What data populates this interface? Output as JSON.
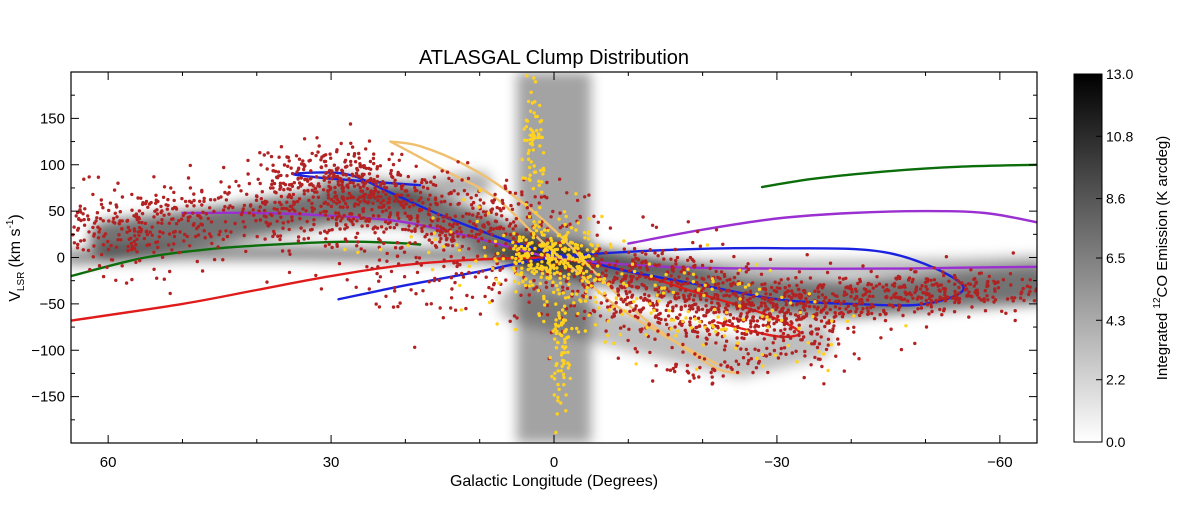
{
  "chart_data": {
    "type": "scatter",
    "title": "ATLASGAL Clump Distribution",
    "xlabel": "Galactic Longitude (Degrees)",
    "ylabel_main": "V",
    "ylabel_sub": "LSR",
    "ylabel_units": "(km s",
    "ylabel_units_sup": "-1",
    "ylabel_units_close": ")",
    "xlim": [
      65,
      -65
    ],
    "ylim": [
      -200,
      200
    ],
    "x_ticks": [
      60,
      30,
      0,
      -30,
      -60
    ],
    "x_tick_labels": [
      "60",
      "30",
      "0",
      "−30",
      "−60"
    ],
    "y_ticks": [
      150,
      100,
      50,
      0,
      -50,
      -100,
      -150
    ],
    "y_tick_labels": [
      "150",
      "100",
      "50",
      "0",
      "−50",
      "−100",
      "−150"
    ],
    "colorbar": {
      "label_prefix": "Integrated ",
      "label_sup": "12",
      "label_suffix": "CO Emission (K arcdeg)",
      "range": [
        0.0,
        13.0
      ],
      "tick_labels": [
        "13.0",
        "10.8",
        "8.6",
        "6.5",
        "4.3",
        "2.2",
        "0.0"
      ],
      "tick_values": [
        13.0,
        10.8,
        8.6,
        6.5,
        4.3,
        2.2,
        0.0
      ]
    },
    "co_emission": {
      "description_color": "#000000",
      "ridges": [
        {
          "points": [
            [
              60,
              20
            ],
            [
              45,
              35
            ],
            [
              30,
              55
            ],
            [
              20,
              55
            ],
            [
              10,
              30
            ],
            [
              5,
              10
            ],
            [
              0,
              0
            ],
            [
              -10,
              -15
            ],
            [
              -25,
              -40
            ],
            [
              -40,
              -45
            ],
            [
              -55,
              -35
            ],
            [
              -65,
              -30
            ]
          ],
          "width": 40,
          "intensity": 0.55
        },
        {
          "points": [
            [
              65,
              0
            ],
            [
              50,
              5
            ],
            [
              35,
              5
            ],
            [
              20,
              3
            ],
            [
              10,
              2
            ],
            [
              0,
              0
            ]
          ],
          "width": 16,
          "intensity": 0.45
        },
        {
          "points": [
            [
              0,
              0
            ],
            [
              -20,
              -10
            ],
            [
              -40,
              -10
            ],
            [
              -55,
              -8
            ],
            [
              -65,
              -5
            ]
          ],
          "width": 14,
          "intensity": 0.3
        },
        {
          "points": [
            [
              10,
              80
            ],
            [
              20,
              70
            ],
            [
              30,
              80
            ]
          ],
          "width": 26,
          "intensity": 0.3
        },
        {
          "points": [
            [
              5,
              -50
            ],
            [
              -10,
              -80
            ],
            [
              -25,
              -110
            ],
            [
              -35,
              -90
            ]
          ],
          "width": 40,
          "intensity": 0.25
        }
      ],
      "cmz": {
        "x_range": [
          -5,
          5
        ],
        "v_range": [
          -200,
          200
        ],
        "intensity": 0.6
      }
    },
    "series": [
      {
        "name": "Spiral arm (green)",
        "color": "#0b6e0b",
        "segments": [
          {
            "x": [
              65,
              55,
              45,
              35,
              28,
              22,
              18
            ],
            "y": [
              -20,
              0,
              10,
              15,
              17,
              16,
              14
            ]
          },
          {
            "x": [
              -28,
              -35,
              -45,
              -55,
              -65
            ],
            "y": [
              76,
              85,
              93,
              98,
              100
            ]
          }
        ]
      },
      {
        "name": "Spiral arm (red)",
        "color": "#e01b1b",
        "segments": [
          {
            "x": [
              65,
              50,
              40,
              30,
              20,
              10,
              0
            ],
            "y": [
              -68,
              -50,
              -35,
              -20,
              -8,
              -2,
              0
            ]
          },
          {
            "x": [
              0,
              -10,
              -20,
              -28,
              -33,
              -30,
              -22
            ],
            "y": [
              0,
              -15,
              -40,
              -60,
              -80,
              -85,
              -70
            ]
          }
        ]
      },
      {
        "name": "Spiral arm (blue)",
        "color": "#1a22e0",
        "segments": [
          {
            "x": [
              29,
              20,
              10,
              0,
              -15,
              -30,
              -45,
              -55,
              -50,
              -40,
              -30,
              -20,
              -10,
              -5
            ],
            "y": [
              -45,
              -30,
              -15,
              0,
              8,
              10,
              5,
              -30,
              -50,
              -50,
              -45,
              -30,
              -15,
              -5
            ]
          },
          {
            "x": [
              -5,
              5,
              15,
              22,
              28,
              35,
              30,
              18
            ],
            "y": [
              -5,
              15,
              45,
              70,
              90,
              90,
              85,
              78
            ]
          }
        ]
      },
      {
        "name": "Spiral arm (purple)",
        "color": "#9b30d0",
        "segments": [
          {
            "x": [
              50,
              40,
              30,
              20,
              10,
              0,
              -15,
              -30,
              -45,
              -55,
              -65
            ],
            "y": [
              48,
              48,
              45,
              38,
              20,
              0,
              -10,
              -12,
              -12,
              -11,
              -10
            ]
          },
          {
            "x": [
              -10,
              -20,
              -30,
              -40,
              -50,
              -58,
              -65
            ],
            "y": [
              15,
              30,
              42,
              48,
              50,
              48,
              38
            ]
          }
        ]
      },
      {
        "name": "3-kpc arms (tan)",
        "color": "#f0c070",
        "segments": [
          {
            "x": [
              22,
              18,
              12,
              6,
              0,
              -6,
              -12,
              -18,
              -22,
              -25
            ],
            "y": [
              125,
              120,
              100,
              70,
              30,
              -20,
              -65,
              -100,
              -120,
              -125
            ]
          },
          {
            "x": [
              22,
              15,
              8,
              2,
              -3,
              -8,
              -15,
              -22
            ],
            "y": [
              125,
              95,
              65,
              20,
              -15,
              -50,
              -85,
              -115
            ]
          }
        ]
      },
      {
        "name": "ATLASGAL clumps (disk)",
        "color": "#b22222",
        "clusters": [
          {
            "cx": 50,
            "cy": 45,
            "sx": 14,
            "sy": 18,
            "n": 320
          },
          {
            "cx": 30,
            "cy": 85,
            "sx": 6,
            "sy": 18,
            "n": 240
          },
          {
            "cx": 25,
            "cy": 60,
            "sx": 8,
            "sy": 22,
            "n": 260
          },
          {
            "cx": 12,
            "cy": 35,
            "sx": 8,
            "sy": 22,
            "n": 260
          },
          {
            "cx": 58,
            "cy": 20,
            "sx": 5,
            "sy": 20,
            "n": 120
          },
          {
            "cx": -10,
            "cy": -25,
            "sx": 8,
            "sy": 22,
            "n": 280
          },
          {
            "cx": -22,
            "cy": -55,
            "sx": 8,
            "sy": 25,
            "n": 320
          },
          {
            "cx": -30,
            "cy": -70,
            "sx": 6,
            "sy": 22,
            "n": 200
          },
          {
            "cx": -42,
            "cy": -45,
            "sx": 10,
            "sy": 14,
            "n": 260
          },
          {
            "cx": -55,
            "cy": -35,
            "sx": 6,
            "sy": 10,
            "n": 140
          },
          {
            "cx": -20,
            "cy": -120,
            "sx": 4,
            "sy": 8,
            "n": 40
          },
          {
            "cx": 18,
            "cy": -20,
            "sx": 8,
            "sy": 25,
            "n": 80
          }
        ]
      },
      {
        "name": "ATLASGAL clumps (CMZ)",
        "color": "#ffd21f",
        "clusters": [
          {
            "cx": 0,
            "cy": 0,
            "sx": 3.2,
            "sy": 20,
            "n": 260
          },
          {
            "cx": 3,
            "cy": 120,
            "sx": 0.8,
            "sy": 28,
            "n": 70
          },
          {
            "cx": -1,
            "cy": -110,
            "sx": 0.8,
            "sy": 40,
            "n": 70
          },
          {
            "cx": -10,
            "cy": -40,
            "sx": 10,
            "sy": 25,
            "n": 90
          },
          {
            "cx": -25,
            "cy": -70,
            "sx": 8,
            "sy": 22,
            "n": 70
          },
          {
            "cx": 10,
            "cy": 20,
            "sx": 8,
            "sy": 25,
            "n": 40
          }
        ]
      }
    ]
  }
}
